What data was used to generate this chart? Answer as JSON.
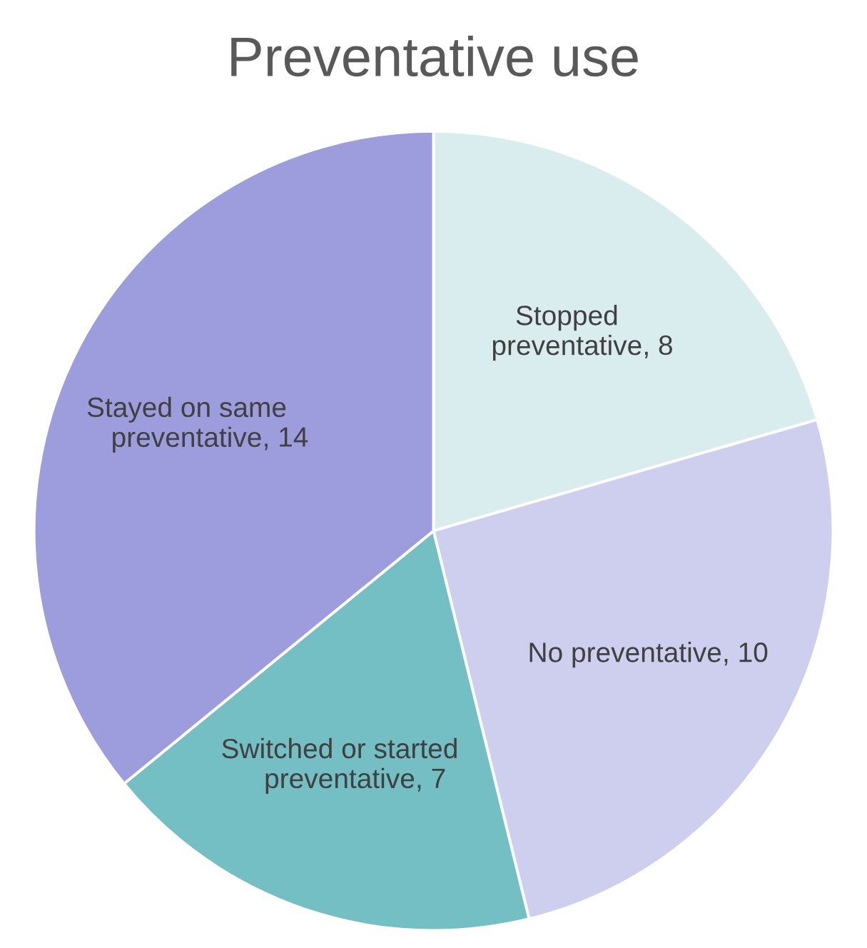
{
  "chart_data": {
    "type": "pie",
    "title": "Preventative use",
    "categories": [
      "Stopped\npreventative",
      "No preventative",
      "Switched or started\npreventative",
      "Stayed on same\npreventative"
    ],
    "values": [
      8,
      10,
      7,
      14
    ],
    "colors": [
      "#daedee",
      "#cecfee",
      "#73bfc4",
      "#9d9cdd"
    ],
    "value_labels": [
      ", 8",
      ", 10",
      ", 7",
      ", 14"
    ]
  }
}
